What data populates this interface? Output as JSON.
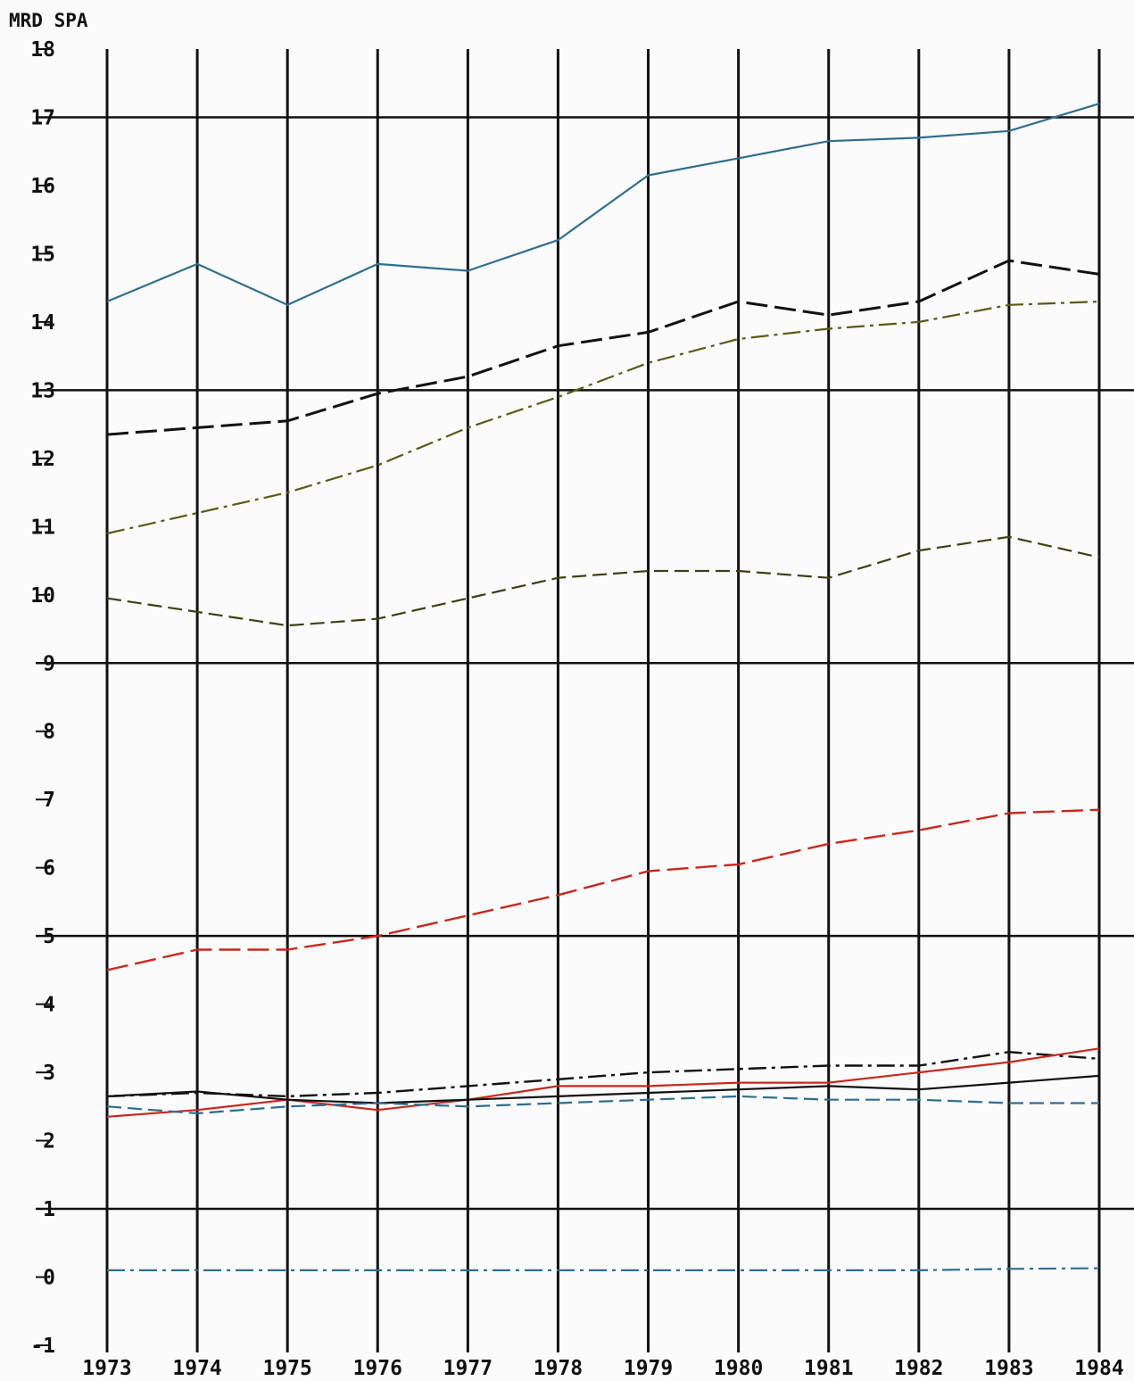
{
  "chart_data": {
    "type": "line",
    "ylabel": "MRD SPA",
    "ylim": [
      -1,
      18
    ],
    "yticks": [
      18,
      17,
      16,
      15,
      14,
      13,
      12,
      11,
      10,
      9,
      8,
      7,
      6,
      5,
      4,
      3,
      2,
      1,
      0,
      -1
    ],
    "major_gridlines_y": [
      17,
      13,
      9,
      5,
      1
    ],
    "grid": true,
    "x": [
      "1973",
      "1974",
      "1975",
      "1976",
      "1977",
      "1978",
      "1979",
      "1980",
      "1981",
      "1982",
      "1983",
      "1984"
    ],
    "series": [
      {
        "color": "#2f6e8e",
        "dash": "solid",
        "stroke_width": 2.2,
        "values": [
          14.3,
          14.85,
          14.25,
          14.85,
          14.75,
          15.2,
          16.15,
          16.4,
          16.65,
          16.7,
          16.8,
          17.2
        ]
      },
      {
        "color": "#111111",
        "dash": "long-dash",
        "stroke_width": 3,
        "values": [
          12.35,
          12.45,
          12.55,
          12.95,
          13.2,
          13.65,
          13.85,
          14.3,
          14.1,
          14.3,
          14.9,
          14.7
        ]
      },
      {
        "color": "#5a5a14",
        "dash": "dash-dot",
        "stroke_width": 2.2,
        "values": [
          10.9,
          11.2,
          11.5,
          11.9,
          12.45,
          12.9,
          13.4,
          13.75,
          13.9,
          14.0,
          14.25,
          14.3
        ]
      },
      {
        "color": "#3f3f14",
        "dash": "dash",
        "stroke_width": 2.2,
        "values": [
          9.95,
          9.75,
          9.55,
          9.65,
          9.95,
          10.25,
          10.35,
          10.35,
          10.25,
          10.65,
          10.85,
          10.55
        ]
      },
      {
        "color": "#c8281e",
        "dash": "long-dash",
        "stroke_width": 2.4,
        "values": [
          4.5,
          4.8,
          4.8,
          5.0,
          5.3,
          5.6,
          5.95,
          6.05,
          6.35,
          6.55,
          6.8,
          6.85
        ]
      },
      {
        "color": "#111111",
        "dash": "dash-dot",
        "stroke_width": 2.4,
        "values": [
          2.65,
          2.7,
          2.65,
          2.7,
          2.8,
          2.9,
          3.0,
          3.05,
          3.1,
          3.1,
          3.3,
          3.2
        ]
      },
      {
        "color": "#c8281e",
        "dash": "solid",
        "stroke_width": 2.2,
        "values": [
          2.35,
          2.45,
          2.6,
          2.45,
          2.6,
          2.8,
          2.8,
          2.85,
          2.85,
          3.0,
          3.15,
          3.35
        ]
      },
      {
        "color": "#111111",
        "dash": "solid",
        "stroke_width": 2.2,
        "values": [
          2.65,
          2.72,
          2.6,
          2.55,
          2.6,
          2.65,
          2.7,
          2.75,
          2.8,
          2.75,
          2.85,
          2.95
        ]
      },
      {
        "color": "#2f6e8e",
        "dash": "dash",
        "stroke_width": 2.2,
        "values": [
          2.5,
          2.4,
          2.5,
          2.55,
          2.5,
          2.55,
          2.6,
          2.65,
          2.6,
          2.6,
          2.55,
          2.55
        ]
      },
      {
        "color": "#2f6e8e",
        "dash": "dash-dot",
        "stroke_width": 2.2,
        "values": [
          0.1,
          0.1,
          0.1,
          0.1,
          0.1,
          0.1,
          0.1,
          0.1,
          0.1,
          0.1,
          0.12,
          0.13
        ]
      }
    ]
  }
}
